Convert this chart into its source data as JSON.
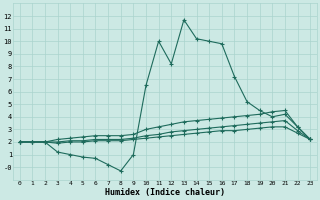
{
  "xlabel": "Humidex (Indice chaleur)",
  "x": [
    0,
    1,
    2,
    3,
    4,
    5,
    6,
    7,
    8,
    9,
    10,
    11,
    12,
    13,
    14,
    15,
    16,
    17,
    18,
    19,
    20,
    21,
    22,
    23
  ],
  "line1": [
    2,
    2,
    2,
    1.2,
    1.0,
    0.8,
    0.7,
    0.2,
    -0.3,
    1.0,
    6.5,
    10.0,
    8.2,
    11.7,
    10.2,
    10.0,
    9.8,
    7.2,
    5.2,
    4.5,
    4.0,
    4.2,
    3.2,
    2.2
  ],
  "line2": [
    2,
    2,
    2,
    2.2,
    2.3,
    2.4,
    2.5,
    2.5,
    2.5,
    2.6,
    3.0,
    3.2,
    3.4,
    3.6,
    3.7,
    3.8,
    3.9,
    4.0,
    4.1,
    4.2,
    4.4,
    4.5,
    3.2,
    2.2
  ],
  "line3": [
    2,
    2,
    2,
    2.0,
    2.1,
    2.1,
    2.2,
    2.2,
    2.2,
    2.3,
    2.5,
    2.6,
    2.8,
    2.9,
    3.0,
    3.1,
    3.2,
    3.3,
    3.4,
    3.5,
    3.6,
    3.7,
    2.9,
    2.2
  ],
  "line4": [
    2,
    2,
    2,
    1.9,
    2.0,
    2.0,
    2.1,
    2.1,
    2.1,
    2.2,
    2.3,
    2.4,
    2.5,
    2.6,
    2.7,
    2.8,
    2.9,
    2.9,
    3.0,
    3.1,
    3.2,
    3.2,
    2.7,
    2.2
  ],
  "bg_color": "#cce9e4",
  "grid_color": "#aad4ce",
  "line_color": "#1e6b5c",
  "ylim": [
    -1,
    13
  ],
  "xlim": [
    -0.5,
    23.5
  ],
  "yticks": [
    0,
    1,
    2,
    3,
    4,
    5,
    6,
    7,
    8,
    9,
    10,
    11,
    12
  ],
  "xticks": [
    0,
    1,
    2,
    3,
    4,
    5,
    6,
    7,
    8,
    9,
    10,
    11,
    12,
    13,
    14,
    15,
    16,
    17,
    18,
    19,
    20,
    21,
    22,
    23
  ],
  "ytick_labels": [
    "-0",
    "1",
    "2",
    "3",
    "4",
    "5",
    "6",
    "7",
    "8",
    "9",
    "10",
    "11",
    "12"
  ]
}
